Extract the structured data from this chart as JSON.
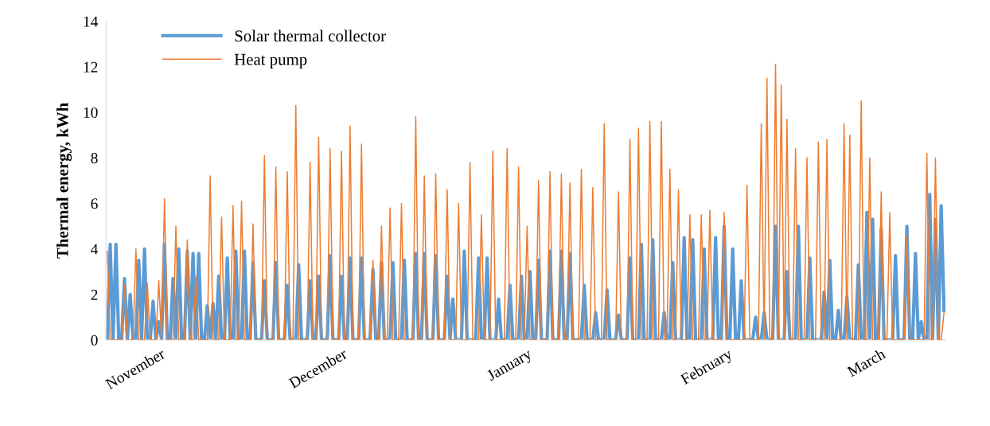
{
  "chart_data": {
    "type": "line",
    "ylabel": "Thermal energy, kWh",
    "categories": [
      null,
      null,
      null,
      null,
      null,
      null,
      null,
      null,
      null,
      null,
      "November",
      null,
      null,
      null,
      null,
      null,
      null,
      null,
      null,
      null,
      null,
      null,
      null,
      null,
      null,
      null,
      null,
      null,
      null,
      null,
      null,
      null,
      null,
      null,
      null,
      null,
      null,
      null,
      null,
      null,
      null,
      null,
      null,
      null,
      null,
      null,
      null,
      null,
      null,
      null,
      null,
      null,
      null,
      null,
      null,
      null,
      null,
      null,
      null,
      null,
      null,
      null,
      null,
      null,
      null,
      null,
      null,
      null,
      null,
      null,
      null,
      null,
      null,
      null,
      "December",
      null,
      null,
      null,
      null,
      null,
      null,
      null,
      null,
      null,
      null,
      null,
      null,
      null,
      null,
      null,
      null,
      null,
      null,
      null,
      null,
      null,
      null,
      null,
      null,
      null,
      null,
      null,
      null,
      null,
      null,
      null,
      null,
      null,
      null,
      null,
      null,
      null,
      null,
      null,
      null,
      null,
      null,
      null,
      null,
      null,
      null,
      null,
      null,
      null,
      null,
      null,
      null,
      null,
      null,
      null,
      null,
      null,
      null,
      null,
      null,
      null,
      null,
      null,
      null,
      null,
      null,
      "January",
      null,
      null,
      null,
      null,
      null,
      null,
      null,
      null,
      null,
      null,
      null,
      null,
      null,
      null,
      null,
      null,
      null,
      null,
      null,
      null,
      null,
      null,
      null,
      null,
      null,
      null,
      null,
      null,
      null,
      null,
      null,
      null,
      null,
      null,
      null,
      null,
      null,
      null,
      null,
      null,
      null,
      null,
      null,
      null,
      null,
      null,
      null,
      null,
      null,
      null,
      null,
      null,
      null,
      null,
      null,
      null,
      null,
      null,
      null,
      null,
      null,
      null,
      null,
      null,
      null,
      null,
      null,
      null,
      "February",
      null,
      null,
      null,
      null,
      null,
      null,
      null,
      null,
      null,
      null,
      null,
      null,
      null,
      null,
      null,
      null,
      null,
      null,
      null,
      null,
      null,
      null,
      null,
      null,
      null,
      null,
      null,
      null,
      null,
      null,
      null,
      null,
      null,
      null,
      null,
      null,
      null,
      null,
      null,
      null,
      null,
      null,
      null,
      null,
      null,
      null,
      null,
      null,
      null,
      null,
      null,
      null,
      null,
      null,
      null,
      "March",
      null,
      null,
      null,
      null,
      null,
      null,
      null,
      null,
      null,
      null,
      null,
      null,
      null,
      null,
      null,
      null,
      null,
      null,
      null,
      null,
      null,
      null,
      null,
      null,
      null,
      null,
      null
    ],
    "ylim": [
      0,
      14
    ],
    "yticks": [
      0,
      2,
      4,
      6,
      8,
      10,
      12,
      14
    ],
    "grid": false,
    "legend": "top left",
    "marker": "none",
    "line_style": "solid",
    "series": [
      {
        "name": "Solar thermal collector",
        "color": "#5b9bd5",
        "values": [
          0,
          4.2,
          0,
          4.2,
          0,
          0,
          2.7,
          0,
          2.0,
          0,
          0,
          3.5,
          0,
          4.0,
          0,
          0,
          1.7,
          0,
          0.8,
          0,
          4.2,
          0,
          0,
          2.7,
          0,
          4.0,
          0,
          0,
          3.9,
          0,
          3.8,
          0,
          3.8,
          0,
          0,
          1.5,
          0,
          1.6,
          0,
          2.8,
          0,
          0,
          3.6,
          0,
          0,
          3.9,
          0,
          0,
          3.9,
          0,
          0,
          3.4,
          0,
          0,
          0,
          2.6,
          0,
          0,
          0,
          3.4,
          0,
          0,
          0,
          2.4,
          0,
          0,
          0,
          3.3,
          0,
          0,
          0,
          2.6,
          0,
          0,
          2.8,
          0,
          0,
          0,
          3.7,
          0,
          0,
          0,
          2.8,
          0,
          0,
          3.6,
          0,
          0,
          0,
          3.6,
          0,
          0,
          0,
          3.1,
          0,
          0,
          3.4,
          0,
          0,
          0,
          3.4,
          0,
          0,
          0,
          3.5,
          0,
          0,
          0,
          3.8,
          0,
          0,
          3.8,
          0,
          0,
          0,
          3.7,
          0,
          0,
          0,
          2.8,
          0,
          1.8,
          0,
          0,
          0,
          3.9,
          0,
          0,
          0,
          0,
          3.6,
          0,
          0,
          3.6,
          0,
          0,
          0,
          1.8,
          0,
          0,
          0,
          2.4,
          0,
          0,
          0,
          2.8,
          0,
          0,
          3.0,
          0,
          0,
          3.5,
          0,
          0,
          0,
          3.9,
          0,
          0,
          0,
          3.9,
          0,
          0,
          3.8,
          0,
          0,
          0,
          0,
          2.4,
          0,
          0,
          0,
          1.2,
          0,
          0,
          0,
          2.2,
          0,
          0,
          0,
          1.1,
          0,
          0,
          0,
          3.6,
          0,
          0,
          0,
          4.2,
          0,
          0,
          0,
          4.4,
          0,
          0,
          0,
          1.2,
          0,
          0,
          3.4,
          0,
          0,
          0,
          4.5,
          0,
          0,
          4.4,
          0,
          0,
          0,
          4.0,
          0,
          0,
          0,
          4.5,
          0,
          0,
          5.0,
          0,
          0,
          4.0,
          0,
          0,
          2.6,
          0,
          0,
          0,
          0,
          1.0,
          0,
          0,
          1.2,
          0,
          0,
          0,
          5.0,
          0,
          0,
          0,
          3.0,
          0,
          0,
          0,
          5.0,
          0,
          0,
          0,
          3.6,
          0,
          0,
          0,
          0,
          2.1,
          0,
          3.5,
          0,
          0,
          1.3,
          0,
          0,
          1.9,
          0,
          0,
          0,
          3.3,
          0,
          0,
          5.6,
          0,
          5.3,
          0,
          0,
          4.9,
          0,
          0,
          0,
          0,
          3.7,
          0,
          0,
          0,
          5.0,
          0,
          0,
          3.8,
          0,
          0.8,
          0,
          0,
          6.4,
          0,
          5.3,
          0,
          5.9,
          1.3
        ]
      },
      {
        "name": "Heat pump",
        "color": "#ed7d31",
        "values": [
          3.9,
          0,
          0,
          0,
          0,
          0,
          2.4,
          0,
          0,
          0,
          4.0,
          0,
          0,
          0,
          2.5,
          0,
          0,
          0,
          2.6,
          0,
          6.2,
          0,
          0,
          0,
          5.0,
          0,
          0,
          0,
          4.4,
          0,
          0,
          2.8,
          0,
          0,
          0,
          0,
          7.2,
          0,
          0,
          0,
          5.4,
          0,
          0,
          0,
          5.9,
          0,
          0,
          6.1,
          0,
          0,
          0,
          5.1,
          0,
          0,
          0,
          8.1,
          0,
          0,
          0,
          7.6,
          0,
          0,
          0,
          7.4,
          0,
          0,
          10.3,
          0,
          0,
          0,
          0,
          7.8,
          0,
          0,
          8.9,
          0,
          0,
          0,
          8.4,
          0,
          0,
          0,
          8.3,
          0,
          0,
          9.4,
          0,
          0,
          0,
          8.6,
          0,
          0,
          0,
          3.5,
          0,
          0,
          5.0,
          0,
          0,
          5.8,
          0,
          0,
          0,
          6.0,
          0,
          0,
          0,
          0,
          9.8,
          0,
          0,
          7.2,
          0,
          0,
          0,
          7.3,
          0,
          0,
          0,
          6.6,
          0,
          0,
          0,
          6.0,
          0,
          0,
          0,
          7.8,
          0,
          0,
          0,
          5.5,
          0,
          0,
          0,
          8.3,
          0,
          0,
          0,
          0,
          8.4,
          0,
          0,
          0,
          7.6,
          0,
          0,
          5.0,
          0,
          0,
          0,
          7.0,
          0,
          0,
          0,
          7.4,
          0,
          0,
          0,
          7.3,
          0,
          0,
          6.9,
          0,
          0,
          0,
          7.5,
          0,
          0,
          0,
          6.7,
          0,
          0,
          0,
          9.5,
          0,
          0,
          0,
          0,
          6.5,
          0,
          0,
          0,
          8.8,
          0,
          0,
          9.3,
          0,
          0,
          0,
          9.6,
          0,
          0,
          0,
          9.6,
          0,
          0,
          7.5,
          0,
          0,
          6.6,
          0,
          0,
          0,
          5.5,
          0,
          0,
          0,
          5.5,
          0,
          0,
          5.7,
          0,
          0,
          0,
          0,
          5.6,
          0,
          0,
          0,
          0,
          0,
          0,
          0,
          6.8,
          0,
          0,
          0,
          0,
          9.5,
          0,
          11.5,
          0,
          0,
          12.1,
          0,
          11.2,
          0,
          9.7,
          0,
          0,
          8.4,
          0,
          0,
          0,
          8.0,
          0,
          0,
          0,
          8.7,
          0,
          0,
          8.8,
          0,
          0,
          0,
          0,
          0,
          9.5,
          0,
          9.0,
          0,
          0,
          0,
          10.5,
          0,
          0,
          8.0,
          0,
          0,
          0,
          6.5,
          0,
          0,
          5.6,
          0,
          0,
          0,
          0,
          0,
          4.6,
          0,
          0,
          0,
          0,
          0,
          0,
          8.2,
          0,
          0,
          8.0,
          0,
          0,
          1.2
        ]
      }
    ]
  }
}
